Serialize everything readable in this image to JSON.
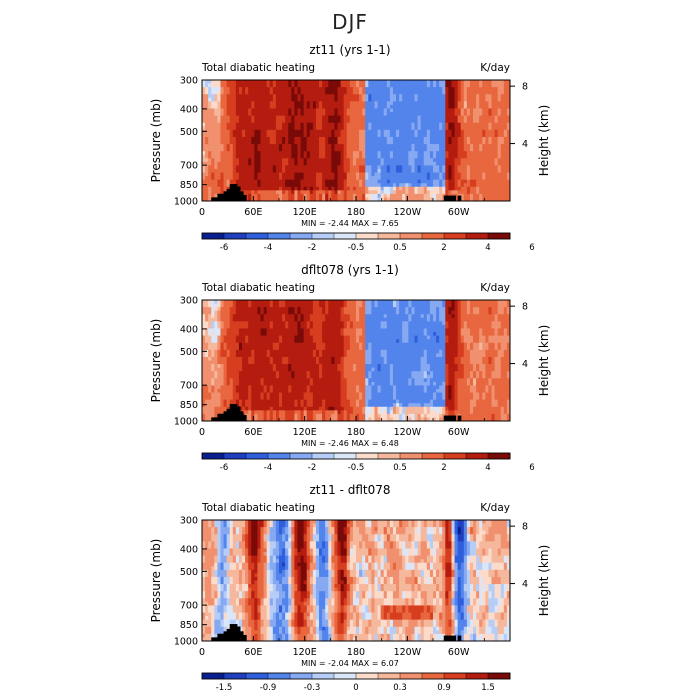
{
  "figure": {
    "title": "DJF"
  },
  "chart_data": [
    {
      "type": "heatmap",
      "title": "zt11 (yrs 1-1)",
      "left_label": "Total diabatic heating",
      "right_label": "K/day",
      "ylabel": "Pressure (mb)",
      "ylabel_right": "Height (km)",
      "x_ticks": [
        "0",
        "60E",
        "120E",
        "180",
        "120W",
        "60W"
      ],
      "y_ticks": [
        "300",
        "400",
        "500",
        "700",
        "850",
        "1000"
      ],
      "y_ticks_right": [
        "8",
        "4"
      ],
      "stats": "MIN =    -2.44   MAX =     7.65",
      "colorbar_labels": [
        "-6",
        "-4",
        "-2",
        "-0.5",
        "0.5",
        "2",
        "4",
        "6"
      ],
      "colors": [
        "#0a1f8f",
        "#1f3fc0",
        "#2f5fdc",
        "#5384ec",
        "#86a9f2",
        "#b5cdf7",
        "#dbe6f9",
        "#fbdccc",
        "#f6b89c",
        "#f0906e",
        "#e8673f",
        "#d63e1f",
        "#b51c10",
        "#7a0a08"
      ]
    },
    {
      "type": "heatmap",
      "title": "dflt078 (yrs 1-1)",
      "left_label": "Total diabatic heating",
      "right_label": "K/day",
      "ylabel": "Pressure (mb)",
      "ylabel_right": "Height (km)",
      "x_ticks": [
        "0",
        "60E",
        "120E",
        "180",
        "120W",
        "60W"
      ],
      "y_ticks": [
        "300",
        "400",
        "500",
        "700",
        "850",
        "1000"
      ],
      "y_ticks_right": [
        "8",
        "4"
      ],
      "stats": "MIN =    -2.46   MAX =     6.48",
      "colorbar_labels": [
        "-6",
        "-4",
        "-2",
        "-0.5",
        "0.5",
        "2",
        "4",
        "6"
      ],
      "colors": [
        "#0a1f8f",
        "#1f3fc0",
        "#2f5fdc",
        "#5384ec",
        "#86a9f2",
        "#b5cdf7",
        "#dbe6f9",
        "#fbdccc",
        "#f6b89c",
        "#f0906e",
        "#e8673f",
        "#d63e1f",
        "#b51c10",
        "#7a0a08"
      ]
    },
    {
      "type": "heatmap",
      "title": "zt11 - dflt078",
      "left_label": "Total diabatic heating",
      "right_label": "K/day",
      "ylabel": "Pressure (mb)",
      "ylabel_right": "Height (km)",
      "x_ticks": [
        "0",
        "60E",
        "120E",
        "180",
        "120W",
        "60W"
      ],
      "y_ticks": [
        "300",
        "400",
        "500",
        "700",
        "850",
        "1000"
      ],
      "y_ticks_right": [
        "8",
        "4"
      ],
      "stats": "MIN =    -2.04   MAX =     6.07",
      "colorbar_labels": [
        "-1.5",
        "-0.9",
        "-0.3",
        "0",
        "0.3",
        "0.9",
        "1.5"
      ],
      "colors": [
        "#0a1f8f",
        "#1f3fc0",
        "#2f5fdc",
        "#5384ec",
        "#86a9f2",
        "#b5cdf7",
        "#dbe6f9",
        "#fbdccc",
        "#f6b89c",
        "#f0906e",
        "#e8673f",
        "#d63e1f",
        "#b51c10",
        "#7a0a08"
      ]
    }
  ]
}
